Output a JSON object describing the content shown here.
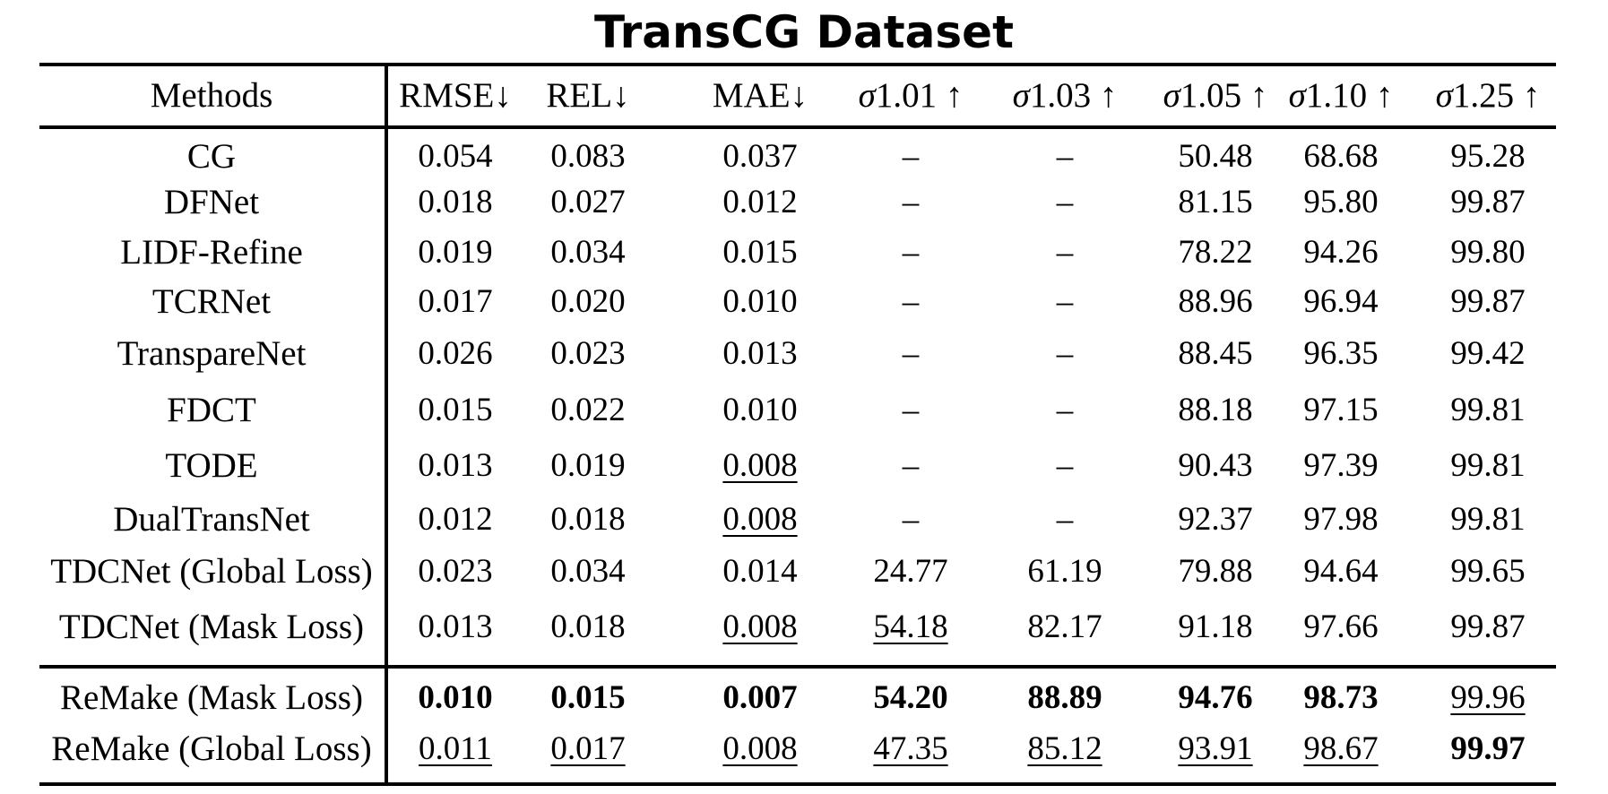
{
  "title": "TransCG Dataset",
  "chart_data": {
    "type": "table",
    "title": "TransCG Dataset",
    "columns": [
      "Methods",
      "RMSE↓",
      "REL↓",
      "MAE↓",
      "σ1.01 ↑",
      "σ1.03 ↑",
      "σ1.05 ↑",
      "σ1.10 ↑",
      "σ1.25 ↑"
    ],
    "rows": [
      {
        "method": "CG",
        "values": [
          "0.054",
          "0.083",
          "0.037",
          "–",
          "–",
          "50.48",
          "68.68",
          "95.28"
        ]
      },
      {
        "method": "DFNet",
        "values": [
          "0.018",
          "0.027",
          "0.012",
          "–",
          "–",
          "81.15",
          "95.80",
          "99.87"
        ]
      },
      {
        "method": "LIDF-Refine",
        "values": [
          "0.019",
          "0.034",
          "0.015",
          "–",
          "–",
          "78.22",
          "94.26",
          "99.80"
        ]
      },
      {
        "method": "TCRNet",
        "values": [
          "0.017",
          "0.020",
          "0.010",
          "–",
          "–",
          "88.96",
          "96.94",
          "99.87"
        ]
      },
      {
        "method": "TranspareNet",
        "values": [
          "0.026",
          "0.023",
          "0.013",
          "–",
          "–",
          "88.45",
          "96.35",
          "99.42"
        ]
      },
      {
        "method": "FDCT",
        "values": [
          "0.015",
          "0.022",
          "0.010",
          "–",
          "–",
          "88.18",
          "97.15",
          "99.81"
        ]
      },
      {
        "method": "TODE",
        "values": [
          "0.013",
          "0.019",
          "0.008",
          "–",
          "–",
          "90.43",
          "97.39",
          "99.81"
        ]
      },
      {
        "method": "DualTransNet",
        "values": [
          "0.012",
          "0.018",
          "0.008",
          "–",
          "–",
          "92.37",
          "97.98",
          "99.81"
        ]
      },
      {
        "method": "TDCNet (Global Loss)",
        "values": [
          "0.023",
          "0.034",
          "0.014",
          "24.77",
          "61.19",
          "79.88",
          "94.64",
          "99.65"
        ]
      },
      {
        "method": "TDCNet (Mask Loss)",
        "values": [
          "0.013",
          "0.018",
          "0.008",
          "54.18",
          "82.17",
          "91.18",
          "97.66",
          "99.87"
        ]
      },
      {
        "method": "ReMake (Mask Loss)",
        "values": [
          "0.010",
          "0.015",
          "0.007",
          "54.20",
          "88.89",
          "94.76",
          "98.73",
          "99.96"
        ]
      },
      {
        "method": "ReMake (Global Loss)",
        "values": [
          "0.011",
          "0.017",
          "0.008",
          "47.35",
          "85.12",
          "93.91",
          "98.67",
          "99.97"
        ]
      }
    ],
    "bold": [
      [
        10,
        0
      ],
      [
        10,
        1
      ],
      [
        10,
        2
      ],
      [
        10,
        3
      ],
      [
        10,
        4
      ],
      [
        10,
        5
      ],
      [
        10,
        6
      ],
      [
        11,
        7
      ]
    ],
    "underline": [
      [
        6,
        2
      ],
      [
        7,
        2
      ],
      [
        9,
        2
      ],
      [
        9,
        3
      ],
      [
        10,
        7
      ],
      [
        11,
        0
      ],
      [
        11,
        1
      ],
      [
        11,
        2
      ],
      [
        11,
        3
      ],
      [
        11,
        4
      ],
      [
        11,
        5
      ],
      [
        11,
        6
      ]
    ],
    "group_separator_after_row": 9
  }
}
